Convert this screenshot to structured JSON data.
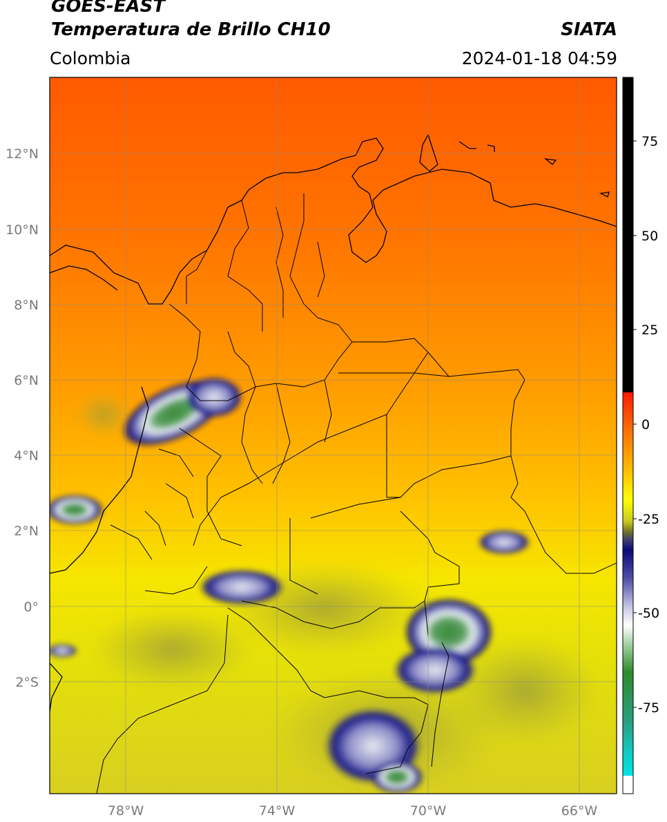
{
  "header": {
    "satellite": "GOES-EAST",
    "product": "Temperatura de Brillo CH10",
    "region": "Colombia",
    "source": "SIATA",
    "datetime": "2024-01-18 04:59"
  },
  "map": {
    "lon_range": [
      -80,
      -65
    ],
    "lat_range": [
      -5,
      14
    ],
    "lat_ticks": [
      {
        "value": 12,
        "label": "12°N"
      },
      {
        "value": 10,
        "label": "10°N"
      },
      {
        "value": 8,
        "label": "8°N"
      },
      {
        "value": 6,
        "label": "6°N"
      },
      {
        "value": 4,
        "label": "4°N"
      },
      {
        "value": 2,
        "label": "2°N"
      },
      {
        "value": 0,
        "label": "0°"
      },
      {
        "value": -2,
        "label": "2°S"
      }
    ],
    "lon_ticks": [
      {
        "value": -78,
        "label": "78°W"
      },
      {
        "value": -74,
        "label": "74°W"
      },
      {
        "value": -70,
        "label": "70°W"
      },
      {
        "value": -66,
        "label": "66°W"
      }
    ],
    "grid": true
  },
  "colorbar": {
    "ticks": [
      "75",
      "50",
      "25",
      "0",
      "-25",
      "-50",
      "-75"
    ],
    "tick_values": [
      75,
      50,
      25,
      0,
      -25,
      -50,
      -75
    ],
    "range": [
      -100,
      90
    ],
    "colors": {
      "black": "#000000",
      "red": "#ff1a00",
      "orange": "#ff8a00",
      "yellow": "#ffff00",
      "olive": "#6e6e2a",
      "navy": "#0a0a7a",
      "white": "#ffffff",
      "green": "#2e8b2e",
      "cyan": "#00e5e5"
    }
  }
}
